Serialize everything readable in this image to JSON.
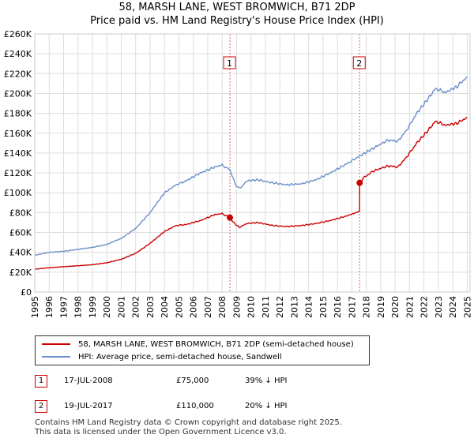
{
  "title_line1": "58, MARSH LANE, WEST BROMWICH, B71 2DP",
  "title_line2": "Price paid vs. HM Land Registry's House Price Index (HPI)",
  "chart_data": {
    "type": "line",
    "ylim": [
      0,
      260000
    ],
    "xlim": [
      1995,
      2025.2
    ],
    "y_ticks": [
      0,
      20000,
      40000,
      60000,
      80000,
      100000,
      120000,
      140000,
      160000,
      180000,
      200000,
      220000,
      240000,
      260000
    ],
    "y_tick_labels": [
      "£0",
      "£20K",
      "£40K",
      "£60K",
      "£80K",
      "£100K",
      "£120K",
      "£140K",
      "£160K",
      "£180K",
      "£200K",
      "£220K",
      "£240K",
      "£260K"
    ],
    "x_tick_labels": [
      "1995",
      "1996",
      "1997",
      "1998",
      "1999",
      "2000",
      "2001",
      "2002",
      "2003",
      "2004",
      "2005",
      "2006",
      "2007",
      "2008",
      "2009",
      "2010",
      "2011",
      "2012",
      "2013",
      "2014",
      "2015",
      "2016",
      "2017",
      "2018",
      "2019",
      "2020",
      "2021",
      "2022",
      "2023",
      "2024",
      "2025"
    ],
    "grid": true,
    "series": [
      {
        "name": "58, MARSH LANE, WEST BROMWICH, B71 2DP (semi-detached house)",
        "color": "#cc0000",
        "points": [
          [
            1995.0,
            23000
          ],
          [
            1996.0,
            24500
          ],
          [
            1997.0,
            25500
          ],
          [
            1998.0,
            26500
          ],
          [
            1999.0,
            27500
          ],
          [
            2000.0,
            29500
          ],
          [
            2001.0,
            33000
          ],
          [
            2002.0,
            39000
          ],
          [
            2003.0,
            49000
          ],
          [
            2004.0,
            61000
          ],
          [
            2004.8,
            67000
          ],
          [
            2005.5,
            68000
          ],
          [
            2006.5,
            72000
          ],
          [
            2007.5,
            78000
          ],
          [
            2008.0,
            79000
          ],
          [
            2008.54,
            75000
          ],
          [
            2008.8,
            70000
          ],
          [
            2009.2,
            65000
          ],
          [
            2009.7,
            69000
          ],
          [
            2010.5,
            70000
          ],
          [
            2011.5,
            67000
          ],
          [
            2012.5,
            66000
          ],
          [
            2013.5,
            67000
          ],
          [
            2014.5,
            69000
          ],
          [
            2015.5,
            72000
          ],
          [
            2016.5,
            76000
          ],
          [
            2017.3,
            80000
          ],
          [
            2017.54,
            82000
          ],
          [
            2017.54,
            110000
          ],
          [
            2017.8,
            115000
          ],
          [
            2018.5,
            122000
          ],
          [
            2019.5,
            127000
          ],
          [
            2020.2,
            126000
          ],
          [
            2020.8,
            136000
          ],
          [
            2021.5,
            150000
          ],
          [
            2022.3,
            163000
          ],
          [
            2022.8,
            172000
          ],
          [
            2023.5,
            168000
          ],
          [
            2024.3,
            170000
          ],
          [
            2025.0,
            176000
          ]
        ]
      },
      {
        "name": "HPI: Average price, semi-detached house, Sandwell",
        "color": "#6b8fc8",
        "points": [
          [
            1995.0,
            37000
          ],
          [
            1996.0,
            40000
          ],
          [
            1997.0,
            41000
          ],
          [
            1998.0,
            43000
          ],
          [
            1999.0,
            45000
          ],
          [
            2000.0,
            48000
          ],
          [
            2001.0,
            54000
          ],
          [
            2002.0,
            64000
          ],
          [
            2003.0,
            80000
          ],
          [
            2004.0,
            100000
          ],
          [
            2004.8,
            108000
          ],
          [
            2005.5,
            112000
          ],
          [
            2006.5,
            120000
          ],
          [
            2007.5,
            126000
          ],
          [
            2008.0,
            128000
          ],
          [
            2008.54,
            123000
          ],
          [
            2009.0,
            106000
          ],
          [
            2009.3,
            105000
          ],
          [
            2009.7,
            112000
          ],
          [
            2010.5,
            113000
          ],
          [
            2011.5,
            110000
          ],
          [
            2012.5,
            108000
          ],
          [
            2013.5,
            109000
          ],
          [
            2014.5,
            113000
          ],
          [
            2015.5,
            120000
          ],
          [
            2016.5,
            128000
          ],
          [
            2017.54,
            137000
          ],
          [
            2018.5,
            145000
          ],
          [
            2019.5,
            153000
          ],
          [
            2020.2,
            152000
          ],
          [
            2020.8,
            163000
          ],
          [
            2021.5,
            180000
          ],
          [
            2022.3,
            195000
          ],
          [
            2022.8,
            205000
          ],
          [
            2023.5,
            201000
          ],
          [
            2024.3,
            207000
          ],
          [
            2025.0,
            217000
          ]
        ]
      }
    ],
    "sale_markers": [
      {
        "label": "1",
        "x": 2008.54,
        "y": 75000
      },
      {
        "label": "2",
        "x": 2017.54,
        "y": 110000
      }
    ]
  },
  "legend": {
    "property_label": "58, MARSH LANE, WEST BROMWICH, B71 2DP (semi-detached house)",
    "hpi_label": "HPI: Average price, semi-detached house, Sandwell"
  },
  "sales": [
    {
      "num": "1",
      "date": "17-JUL-2008",
      "price": "£75,000",
      "hpi": "39% ↓ HPI"
    },
    {
      "num": "2",
      "date": "19-JUL-2017",
      "price": "£110,000",
      "hpi": "20% ↓ HPI"
    }
  ],
  "footer_line1": "Contains HM Land Registry data © Crown copyright and database right 2025.",
  "footer_line2": "This data is licensed under the Open Government Licence v3.0.",
  "colors": {
    "property": "#cc0000",
    "hpi": "#6b8fc8",
    "marker_fill": "#cc0000",
    "grid": "#dddddd"
  }
}
